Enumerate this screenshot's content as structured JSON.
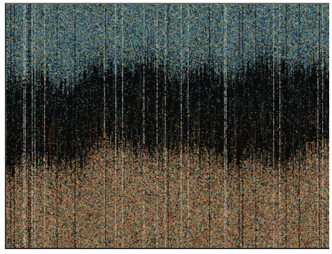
{
  "image": {
    "subject": "abstract-noise-texture",
    "palette": {
      "background": "#0b0c0b",
      "frame": "#ffffff",
      "teal": "#3f8f93",
      "blue": "#4a6fa8",
      "olive": "#8f8f4a",
      "orange": "#c06a3a",
      "red": "#b2463a",
      "tan": "#c9b27a",
      "gray": "#8a8f8c"
    }
  }
}
